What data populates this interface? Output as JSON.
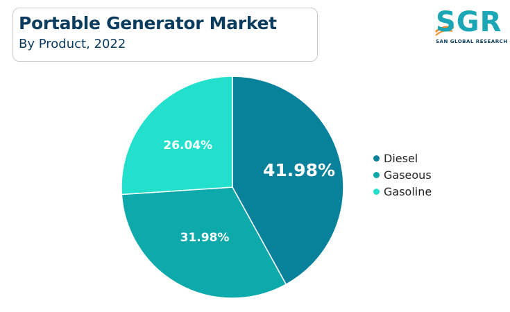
{
  "header": {
    "title": "Portable Generator Market",
    "subtitle": "By Product, 2022"
  },
  "logo": {
    "text": "SGR",
    "subtext": "SAN GLOBAL RESEARCH",
    "color": "#1aa6b4",
    "accent": "#f28c28"
  },
  "chart_data": {
    "type": "pie",
    "categories": [
      "Diesel",
      "Gaseous",
      "Gasoline"
    ],
    "values": [
      41.98,
      31.98,
      26.04
    ],
    "labels": [
      "41.98%",
      "31.98%",
      "26.04%"
    ],
    "colors": [
      "#08819a",
      "#0ea9ab",
      "#22e0cc"
    ],
    "legend_position": "right",
    "start_angle": "top, clockwise"
  }
}
